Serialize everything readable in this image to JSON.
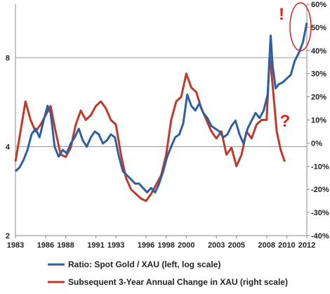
{
  "chart_data": {
    "type": "line",
    "log_scale_left": true,
    "left_axis": {
      "ylim": [
        2,
        11
      ],
      "ticks": [
        2,
        4,
        8
      ],
      "tick_labels": [
        "2",
        "4",
        "8"
      ]
    },
    "right_axis": {
      "ylim": [
        -40,
        60
      ],
      "ticks": [
        -40,
        -30,
        -20,
        -10,
        0,
        10,
        20,
        30,
        40,
        50,
        60
      ],
      "tick_labels": [
        "-40%",
        "-30%",
        "-20%",
        "-10%",
        "0%",
        "10%",
        "20%",
        "30%",
        "40%",
        "50%",
        "60%"
      ]
    },
    "x_axis": {
      "xlim": [
        1983,
        2012
      ],
      "ticks": [
        1983,
        1986,
        1988,
        1991,
        1993,
        1996,
        1998,
        2000,
        2003,
        2005,
        2008,
        2010,
        2012
      ],
      "tick_labels": [
        "1983",
        "1986",
        "1988",
        "1991",
        "1993",
        "1996",
        "1998",
        "2000",
        "2003",
        "2005",
        "2008",
        "2010",
        "2012"
      ]
    },
    "grid": {
      "horizontal_left_ticks": true
    },
    "legend_position": "bottom",
    "series": [
      {
        "name": "Ratio: Spot Gold / XAU (left, log scale)",
        "axis": "left",
        "color": "#2E5FA3",
        "x": [
          1983.0,
          1983.4,
          1983.8,
          1984.2,
          1984.6,
          1985.0,
          1985.4,
          1985.8,
          1986.2,
          1986.5,
          1986.9,
          1987.3,
          1987.7,
          1988.1,
          1988.5,
          1988.9,
          1989.3,
          1989.7,
          1990.1,
          1990.5,
          1990.9,
          1991.3,
          1991.7,
          1992.1,
          1992.5,
          1992.9,
          1993.3,
          1993.7,
          1994.1,
          1994.5,
          1994.9,
          1995.3,
          1995.7,
          1996.1,
          1996.5,
          1996.9,
          1997.3,
          1997.7,
          1998.1,
          1998.5,
          1998.9,
          1999.3,
          1999.7,
          2000.1,
          2000.5,
          2000.9,
          2001.3,
          2001.7,
          2002.1,
          2002.5,
          2002.9,
          2003.3,
          2003.7,
          2004.1,
          2004.5,
          2004.9,
          2005.3,
          2005.7,
          2006.1,
          2006.5,
          2006.9,
          2007.3,
          2007.7,
          2008.1,
          2008.4,
          2008.6,
          2008.9,
          2009.2,
          2009.6,
          2010.0,
          2010.4,
          2010.8,
          2011.2,
          2011.6,
          2012.0
        ],
        "values": [
          3.3,
          3.4,
          3.6,
          3.9,
          4.4,
          4.6,
          4.3,
          4.9,
          5.5,
          5.2,
          4.0,
          3.7,
          3.9,
          3.8,
          4.1,
          4.3,
          4.6,
          4.2,
          4.0,
          4.3,
          4.5,
          4.4,
          4.1,
          4.2,
          4.4,
          4.3,
          3.7,
          3.3,
          3.2,
          3.1,
          3.0,
          3.0,
          2.9,
          2.8,
          2.9,
          2.8,
          3.0,
          3.3,
          3.7,
          4.0,
          4.3,
          4.4,
          4.8,
          6.0,
          5.5,
          5.3,
          5.6,
          5.2,
          5.0,
          4.7,
          4.6,
          4.5,
          4.3,
          4.4,
          4.7,
          4.9,
          4.4,
          4.1,
          4.6,
          4.9,
          5.2,
          5.0,
          5.3,
          6.0,
          9.5,
          7.5,
          6.3,
          6.5,
          6.6,
          6.8,
          7.0,
          7.8,
          8.3,
          9.0,
          10.5
        ]
      },
      {
        "name": "Subsequent 3-Year Annual Change in XAU (right scale)",
        "axis": "right",
        "color": "#C0392B",
        "x": [
          1983.0,
          1983.5,
          1984.0,
          1984.5,
          1985.0,
          1985.5,
          1986.0,
          1986.5,
          1987.0,
          1987.5,
          1988.0,
          1988.5,
          1989.0,
          1989.5,
          1990.0,
          1990.5,
          1991.0,
          1991.5,
          1992.0,
          1992.5,
          1993.0,
          1993.5,
          1994.0,
          1994.5,
          1995.0,
          1995.5,
          1996.0,
          1996.5,
          1997.0,
          1997.5,
          1998.0,
          1998.5,
          1999.0,
          1999.5,
          2000.0,
          2000.5,
          2001.0,
          2001.5,
          2002.0,
          2002.5,
          2003.0,
          2003.5,
          2004.0,
          2004.5,
          2005.0,
          2005.5,
          2006.0,
          2006.5,
          2007.0,
          2007.5,
          2008.0,
          2008.3,
          2008.6,
          2009.0,
          2009.4,
          2009.8
        ],
        "values": [
          -8,
          5,
          18,
          10,
          5,
          8,
          12,
          16,
          5,
          -5,
          -6,
          -2,
          8,
          14,
          10,
          12,
          16,
          18,
          15,
          10,
          8,
          -5,
          -15,
          -20,
          -22,
          -24,
          -25,
          -22,
          -18,
          -14,
          -5,
          10,
          18,
          20,
          30,
          24,
          22,
          15,
          10,
          5,
          2,
          5,
          -5,
          -2,
          -10,
          -5,
          5,
          2,
          8,
          10,
          10,
          38,
          25,
          5,
          -3,
          -8
        ]
      }
    ],
    "annotations": [
      {
        "text": "!",
        "color": "#E02020"
      },
      {
        "text": "?",
        "color": "#E02020"
      }
    ]
  }
}
